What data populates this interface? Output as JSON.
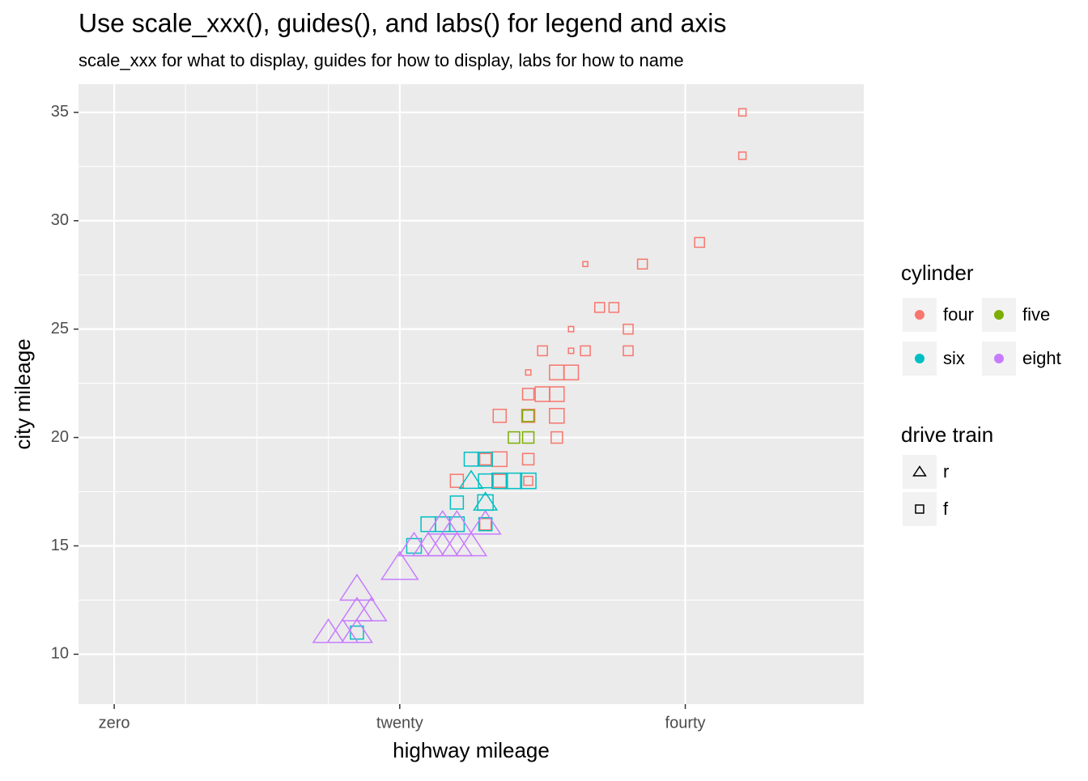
{
  "chart_data": {
    "type": "scatter",
    "title": "Use scale_xxx(), guides(), and labs() for legend and axis",
    "subtitle": "scale_xxx for what to display, guides for how to display, labs for how to name",
    "x_label": "highway mileage",
    "y_label": "city mileage",
    "xlim": [
      -2.5,
      52.5
    ],
    "ylim": [
      7.7,
      36.3
    ],
    "xticks": [
      {
        "value": 0,
        "label": "zero"
      },
      {
        "value": 20,
        "label": "twenty"
      },
      {
        "value": 40,
        "label": "fourty"
      }
    ],
    "x_minor_grid": [
      5,
      10,
      15
    ],
    "yticks": [
      10,
      15,
      20,
      25,
      30,
      35
    ],
    "y_minor_grid": [
      12.5,
      17.5,
      22.5,
      27.5,
      32.5
    ],
    "grid": true,
    "legend_position": "right",
    "color_legend_title": "cylinder",
    "shape_legend": {
      "title": "drive train",
      "items": [
        {
          "name": "r",
          "shape": "triangle"
        },
        {
          "name": "f",
          "shape": "square"
        }
      ]
    },
    "series": [
      {
        "name": "four",
        "color": "#f8766d",
        "x": [
          44,
          44,
          41,
          33,
          37,
          34,
          35,
          32,
          36,
          30,
          32,
          33,
          36,
          29,
          31,
          32,
          29,
          30,
          31,
          27,
          29,
          31,
          31,
          26,
          27,
          29,
          24,
          27,
          29,
          26
        ],
        "values": [
          35,
          33,
          29,
          28,
          28,
          26,
          26,
          25,
          25,
          24,
          24,
          24,
          24,
          23,
          23,
          23,
          22,
          22,
          22,
          21,
          21,
          21,
          20,
          19,
          19,
          19,
          18,
          18,
          18,
          16
        ],
        "size": [
          1.8,
          1.8,
          2.4,
          1.2,
          2.4,
          2.4,
          2.4,
          1.3,
          2.4,
          2.4,
          1.3,
          2.4,
          2.4,
          1.3,
          3.6,
          3.6,
          2.8,
          3.6,
          3.6,
          3.2,
          3.2,
          3.6,
          2.8,
          2.8,
          3.6,
          2.8,
          3.2,
          3.2,
          2.2,
          2.8
        ],
        "drive": [
          "f",
          "f",
          "f",
          "f",
          "f",
          "f",
          "f",
          "f",
          "f",
          "f",
          "f",
          "f",
          "f",
          "f",
          "f",
          "f",
          "f",
          "f",
          "f",
          "f",
          "f",
          "f",
          "f",
          "f",
          "f",
          "f",
          "f",
          "f",
          "f",
          "f"
        ]
      },
      {
        "name": "five",
        "color": "#7cae00",
        "x": [
          28,
          29,
          29
        ],
        "values": [
          20,
          20,
          21
        ],
        "size": [
          2.8,
          2.8,
          2.8
        ],
        "drive": [
          "f",
          "f",
          "f"
        ]
      },
      {
        "name": "six",
        "color": "#00bfc4",
        "x": [
          25,
          26,
          26,
          27,
          28,
          29,
          24,
          26,
          22,
          23,
          24,
          26,
          21,
          17,
          25,
          26
        ],
        "values": [
          19,
          19,
          18,
          18,
          18,
          18,
          17,
          17,
          16,
          16,
          16,
          16,
          15,
          11,
          18,
          17
        ],
        "size": [
          3.4,
          3.4,
          3.4,
          3.8,
          3.8,
          3.8,
          3.2,
          3.8,
          3.6,
          3.6,
          3.6,
          3.2,
          3.6,
          3.2,
          3.8,
          3.8
        ],
        "drive": [
          "f",
          "f",
          "f",
          "f",
          "f",
          "f",
          "f",
          "f",
          "f",
          "f",
          "f",
          "f",
          "f",
          "f",
          "r",
          "r"
        ]
      },
      {
        "name": "eight",
        "color": "#c77cff",
        "x": [
          17,
          17,
          18,
          15,
          16,
          17,
          20,
          21,
          22,
          23,
          24,
          25,
          26,
          24,
          23
        ],
        "values": [
          13,
          12,
          12,
          11,
          11,
          11,
          14,
          15,
          15,
          15,
          15,
          15,
          16,
          16,
          16
        ],
        "size": [
          5.5,
          5,
          5,
          5,
          5,
          5,
          6,
          5,
          5,
          5,
          5,
          5,
          5,
          5,
          5
        ],
        "drive": [
          "r",
          "r",
          "r",
          "r",
          "r",
          "r",
          "r",
          "r",
          "r",
          "r",
          "r",
          "r",
          "r",
          "r",
          "r"
        ]
      }
    ]
  }
}
